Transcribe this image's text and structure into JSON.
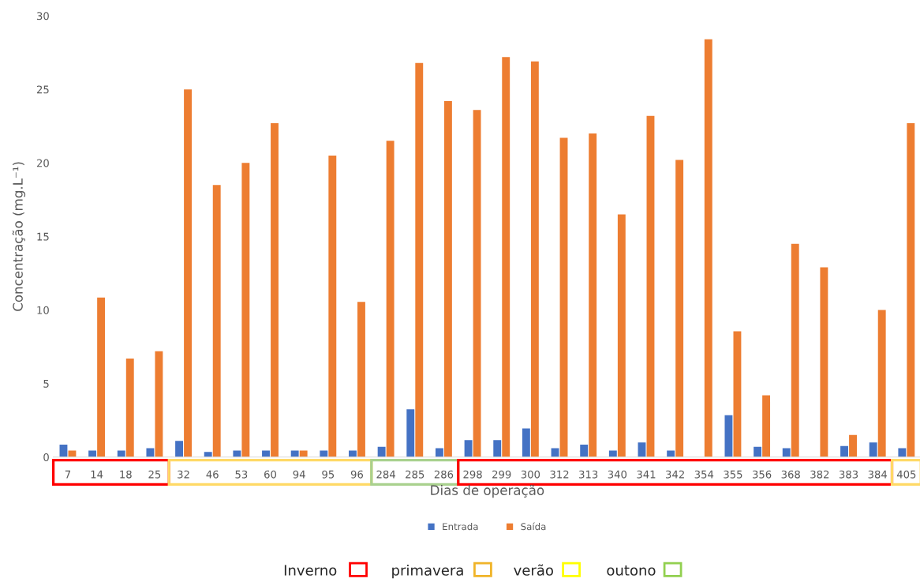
{
  "chart_data": {
    "type": "bar",
    "xlabel": "Dias de operação",
    "ylabel": "Concentração (mg.L⁻¹)",
    "categories": [
      "7",
      "14",
      "18",
      "25",
      "32",
      "46",
      "53",
      "60",
      "94",
      "95",
      "96",
      "284",
      "285",
      "286",
      "298",
      "299",
      "300",
      "312",
      "313",
      "340",
      "341",
      "342",
      "354",
      "355",
      "356",
      "368",
      "382",
      "383",
      "384",
      "405"
    ],
    "series": [
      {
        "name": "Entrada",
        "color": "#4472c4",
        "values": [
          0.85,
          0.45,
          0.45,
          0.6,
          1.1,
          0.35,
          0.45,
          0.45,
          0.45,
          0.45,
          0.45,
          0.7,
          3.25,
          0.6,
          1.15,
          1.15,
          1.95,
          0.6,
          0.85,
          0.45,
          1.0,
          0.45,
          null,
          2.85,
          0.7,
          0.6,
          null,
          0.75,
          1.0,
          0.6
        ]
      },
      {
        "name": "Saída",
        "color": "#ed7d31",
        "values": [
          0.45,
          10.85,
          6.7,
          7.2,
          25.0,
          18.5,
          20.0,
          22.7,
          0.45,
          20.5,
          10.55,
          21.5,
          26.8,
          24.2,
          23.6,
          27.2,
          26.9,
          21.7,
          22.0,
          16.5,
          23.2,
          20.2,
          28.4,
          8.55,
          4.2,
          14.5,
          12.9,
          1.5,
          10.0,
          22.7
        ]
      }
    ],
    "ylim": [
      0,
      30
    ],
    "yticks": [
      0,
      5,
      10,
      15,
      20,
      25,
      30
    ],
    "legend": "bottom",
    "annotations": [
      "Inverno",
      "primavera",
      "verão",
      "outono"
    ]
  }
}
